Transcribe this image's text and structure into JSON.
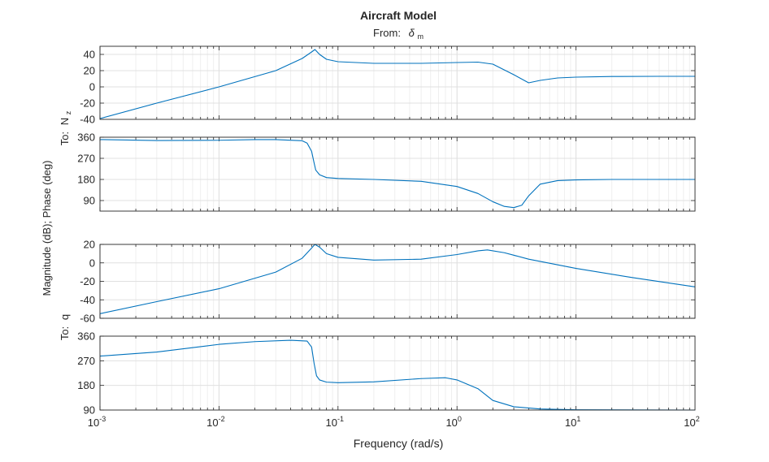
{
  "title": "Aircraft Model",
  "subtitle_prefix": "From:",
  "subtitle_symbol": "δ",
  "subtitle_subscript": "m",
  "xlabel": "Frequency (rad/s)",
  "ylabel": "Magnitude (dB); Phase (deg)",
  "row_labels": [
    {
      "prefix": "To:",
      "symbol": "N",
      "subscript": "z"
    },
    {
      "prefix": "To:",
      "symbol": "q",
      "subscript": ""
    }
  ],
  "colors": {
    "line": "#0072BD",
    "grid": "#e0e0e0",
    "axis": "#262626"
  },
  "chart_data": [
    {
      "type": "line",
      "xscale": "log",
      "xlim": [
        0.001,
        100
      ],
      "ylim": [
        -40,
        50
      ],
      "yticks": [
        -40,
        -20,
        0,
        20,
        40
      ],
      "grid": true,
      "series": [
        {
          "x": [
            0.001,
            0.003,
            0.01,
            0.03,
            0.05,
            0.06,
            0.064,
            0.07,
            0.08,
            0.1,
            0.2,
            0.5,
            1.0,
            1.5,
            2.0,
            3.0,
            4.0,
            5.0,
            7.0,
            10,
            20,
            50,
            100
          ],
          "y": [
            -39,
            -20,
            0,
            20,
            35,
            43,
            46,
            40,
            34,
            31,
            29,
            29,
            30,
            30.5,
            28,
            15,
            5,
            8,
            11,
            12,
            12.8,
            13,
            13
          ]
        }
      ]
    },
    {
      "type": "line",
      "xscale": "log",
      "xlim": [
        0.001,
        100
      ],
      "ylim": [
        45,
        360
      ],
      "yticks": [
        90,
        180,
        270,
        360
      ],
      "grid": true,
      "series": [
        {
          "x": [
            0.001,
            0.003,
            0.01,
            0.02,
            0.03,
            0.05,
            0.055,
            0.06,
            0.063,
            0.065,
            0.07,
            0.08,
            0.1,
            0.2,
            0.5,
            1.0,
            1.5,
            2.0,
            2.5,
            3.0,
            3.5,
            4.0,
            5.0,
            7.0,
            10,
            20,
            50,
            100
          ],
          "y": [
            350,
            346,
            347,
            350,
            350,
            345,
            335,
            300,
            250,
            220,
            200,
            188,
            184,
            180,
            172,
            150,
            120,
            85,
            65,
            60,
            70,
            110,
            160,
            175,
            178,
            180,
            180,
            180
          ]
        }
      ]
    },
    {
      "type": "line",
      "xscale": "log",
      "xlim": [
        0.001,
        100
      ],
      "ylim": [
        -60,
        20
      ],
      "yticks": [
        -60,
        -40,
        -20,
        0,
        20
      ],
      "grid": true,
      "series": [
        {
          "x": [
            0.001,
            0.003,
            0.01,
            0.03,
            0.05,
            0.06,
            0.064,
            0.07,
            0.08,
            0.1,
            0.2,
            0.5,
            1.0,
            1.5,
            1.8,
            2.5,
            4.0,
            10,
            30,
            100
          ],
          "y": [
            -55,
            -42,
            -28,
            -10,
            5,
            16,
            22,
            17,
            10,
            6,
            3,
            4,
            9,
            13,
            14,
            11,
            4,
            -6,
            -16,
            -26
          ]
        }
      ]
    },
    {
      "type": "line",
      "xscale": "log",
      "xlim": [
        0.001,
        100
      ],
      "ylim": [
        90,
        360
      ],
      "yticks": [
        90,
        180,
        270,
        360
      ],
      "xticks": [
        "10",
        "10",
        "10",
        "10",
        "10",
        "10"
      ],
      "xtick_exponents": [
        "-3",
        "-2",
        "-1",
        "0",
        "1",
        "2"
      ],
      "grid": true,
      "series": [
        {
          "x": [
            0.001,
            0.003,
            0.01,
            0.02,
            0.04,
            0.055,
            0.06,
            0.063,
            0.066,
            0.07,
            0.08,
            0.1,
            0.2,
            0.5,
            0.8,
            1.0,
            1.5,
            2.0,
            3.0,
            5.0,
            10,
            100
          ],
          "y": [
            287,
            302,
            330,
            340,
            345,
            342,
            320,
            260,
            215,
            200,
            192,
            190,
            193,
            205,
            208,
            200,
            168,
            125,
            102,
            94,
            91,
            90
          ]
        }
      ]
    }
  ]
}
